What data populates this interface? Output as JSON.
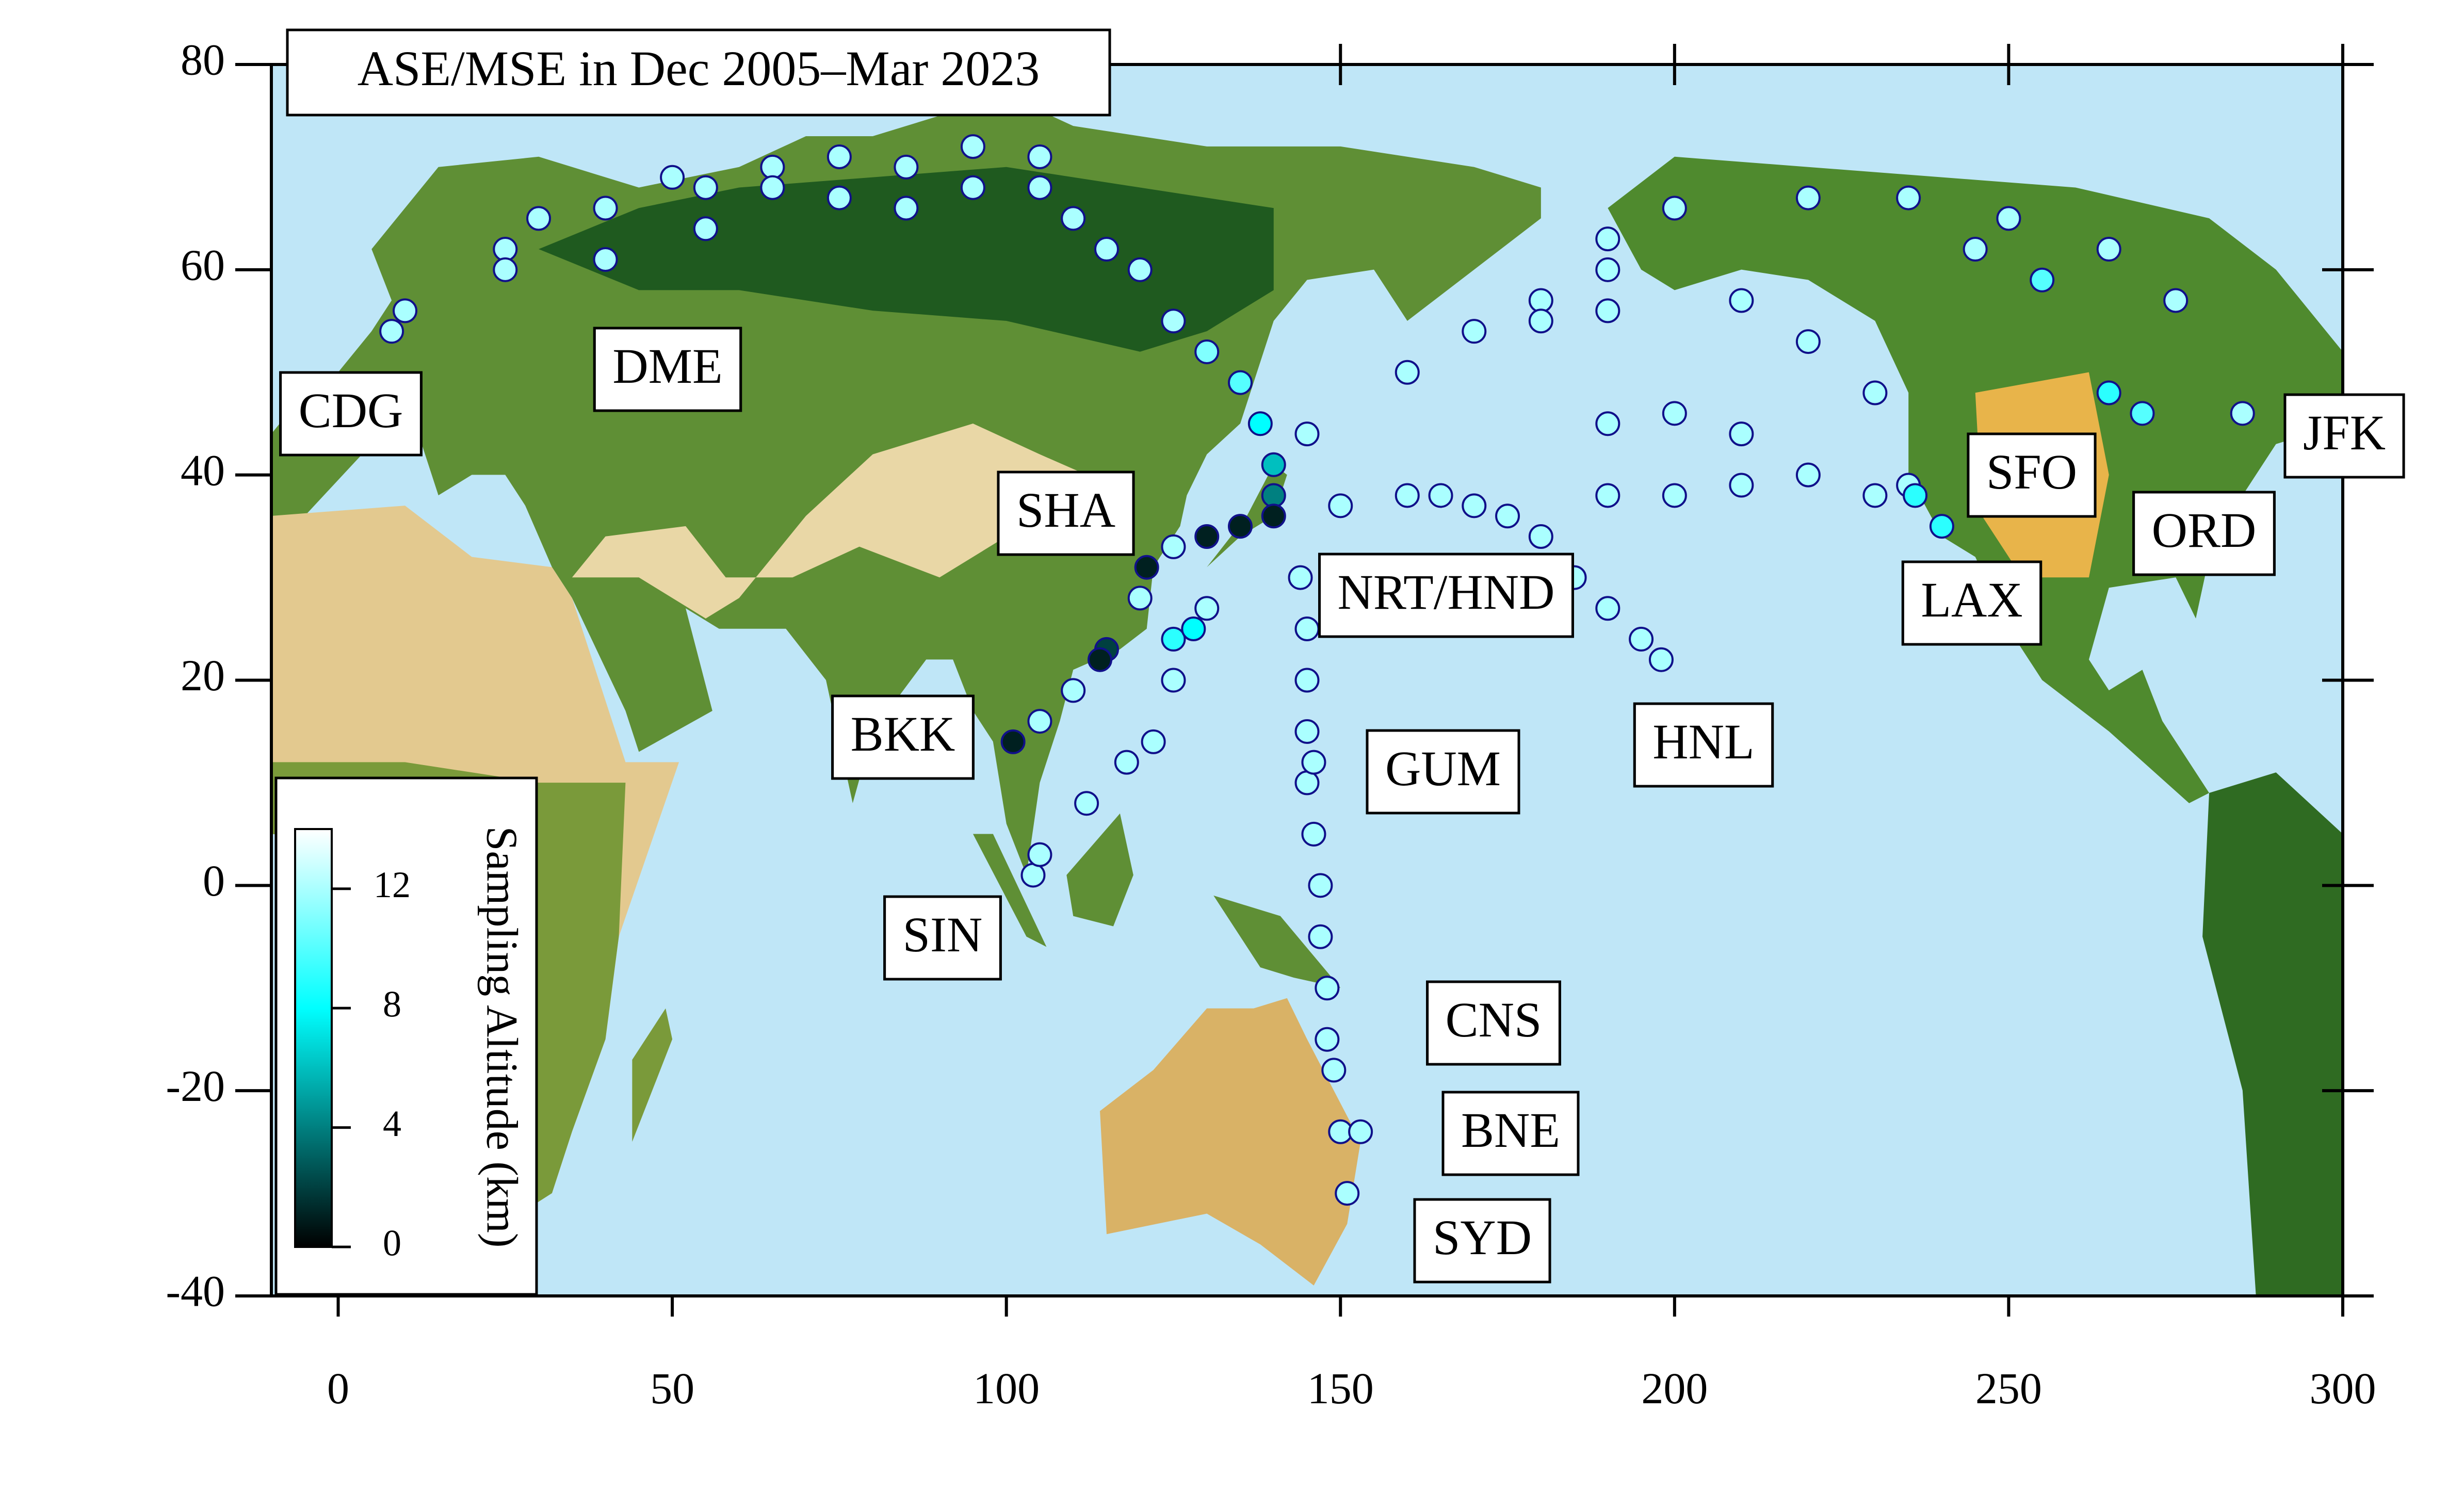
{
  "chart_data": {
    "type": "scatter",
    "title": "ASE/MSE in Dec 2005–Mar 2023",
    "x": [
      8,
      10,
      25,
      25,
      30,
      40,
      40,
      50,
      55,
      55,
      65,
      65,
      75,
      75,
      85,
      85,
      95,
      95,
      105,
      105,
      110,
      115,
      120,
      125,
      130,
      135,
      138,
      140,
      140,
      140,
      135,
      130,
      125,
      121,
      120,
      115,
      114,
      110,
      105,
      101,
      104,
      105,
      112,
      118,
      122,
      125,
      128,
      130,
      125,
      144,
      145,
      145,
      145,
      145,
      146,
      147,
      147,
      148,
      148,
      149,
      150,
      151,
      153,
      146,
      150,
      160,
      170,
      180,
      185,
      190,
      195,
      198,
      175,
      165,
      145,
      160,
      170,
      180,
      190,
      190,
      200,
      210,
      220,
      220,
      230,
      235,
      245,
      250,
      255,
      265,
      265,
      270,
      275,
      285,
      190,
      200,
      210,
      220,
      230,
      235,
      236,
      240,
      190,
      200,
      210,
      190,
      180
    ],
    "y": [
      54,
      56,
      62,
      60,
      65,
      66,
      61,
      69,
      68,
      64,
      70,
      68,
      71,
      67,
      70,
      66,
      72,
      68,
      68,
      71,
      65,
      62,
      60,
      55,
      52,
      49,
      45,
      41,
      38,
      36,
      35,
      34,
      33,
      31,
      28,
      23,
      22,
      19,
      16,
      14,
      1,
      3,
      8,
      12,
      14,
      24,
      25,
      27,
      20,
      30,
      25,
      20,
      15,
      10,
      5,
      0,
      -5,
      -10,
      -15,
      -18,
      -24,
      -30,
      -24,
      12,
      37,
      38,
      37,
      34,
      30,
      27,
      24,
      22,
      36,
      38,
      44,
      50,
      54,
      57,
      60,
      56,
      66,
      57,
      53,
      67,
      48,
      67,
      62,
      65,
      59,
      62,
      48,
      46,
      57,
      46,
      45,
      46,
      44,
      40,
      38,
      39,
      38,
      35,
      38,
      38,
      39,
      63,
      55
    ],
    "altitude": [
      12,
      12,
      12,
      12,
      12,
      12,
      12,
      12,
      12,
      12,
      12,
      12,
      12,
      12,
      12,
      12,
      12,
      12,
      12,
      12,
      12,
      12,
      12,
      12,
      11,
      10,
      8,
      6,
      4,
      1,
      1,
      1,
      12,
      1,
      12,
      2,
      1,
      12,
      12,
      1,
      12,
      12,
      12,
      12,
      12,
      9,
      8,
      12,
      12,
      12,
      12,
      12,
      12,
      12,
      12,
      12,
      12,
      12,
      12,
      12,
      12,
      12,
      12,
      12,
      12,
      12,
      12,
      12,
      12,
      12,
      12,
      12,
      12,
      12,
      12,
      12,
      12,
      12,
      12,
      12,
      12,
      12,
      12,
      12,
      12,
      12,
      12,
      12,
      10,
      12,
      9,
      10,
      12,
      12,
      12,
      12,
      12,
      12,
      12,
      12,
      9,
      9,
      12,
      12,
      12,
      12,
      12
    ],
    "xlim": [
      -10,
      300
    ],
    "ylim": [
      -40,
      80
    ],
    "xticks": [
      0,
      50,
      100,
      150,
      200,
      250,
      300
    ],
    "yticks": [
      -40,
      -20,
      0,
      20,
      40,
      60,
      80
    ],
    "colorbar": {
      "label": "Sampling Altitude (km)",
      "lim": [
        0,
        14
      ],
      "ticks": [
        0,
        4,
        8,
        12
      ]
    },
    "annotations": [
      "CDG",
      "DME",
      "SHA",
      "NRT/HND",
      "BKK",
      "GUM",
      "HNL",
      "SIN",
      "CNS",
      "BNE",
      "SYD",
      "SFO",
      "LAX",
      "ORD",
      "JFK"
    ]
  }
}
